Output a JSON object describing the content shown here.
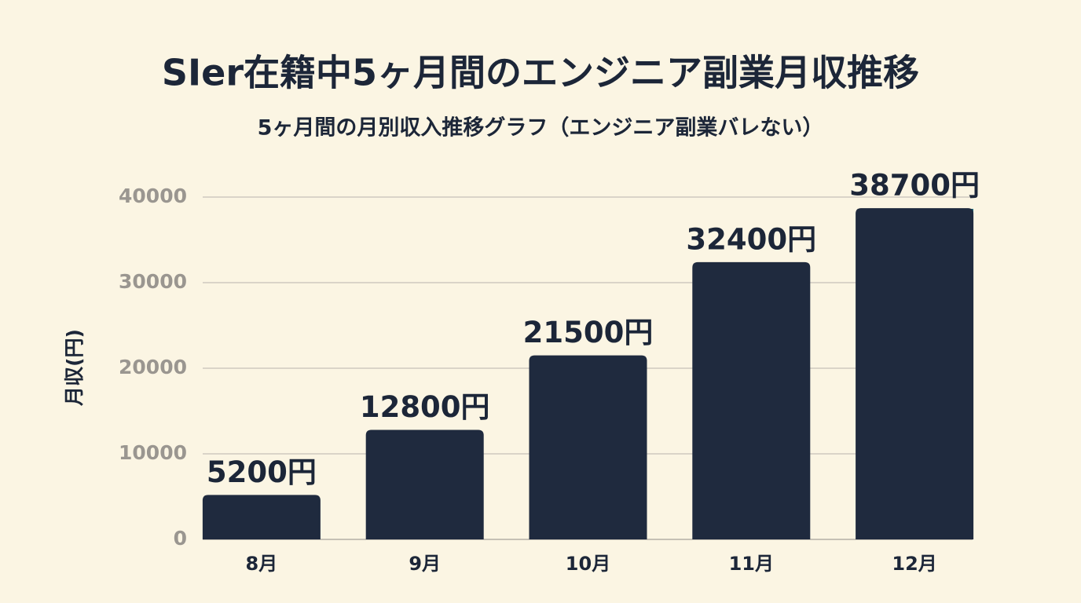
{
  "chart_data": {
    "type": "bar",
    "title": "SIer在籍中5ヶ月間のエンジニア副業月収推移",
    "subtitle": "5ヶ月間の月別収入推移グラフ（エンジニア副業バレない）",
    "y_label": "月収(円)",
    "categories": [
      "8月",
      "9月",
      "10月",
      "11月",
      "12月"
    ],
    "values": [
      5200,
      12800,
      21500,
      32400,
      38700
    ],
    "value_labels": [
      "5200円",
      "12800円",
      "21500円",
      "32400円",
      "38700円"
    ],
    "color": "#1f2a3e",
    "ylim": [
      0,
      40000
    ],
    "yticks": [
      0,
      10000,
      20000,
      30000,
      40000
    ],
    "grid": true
  }
}
